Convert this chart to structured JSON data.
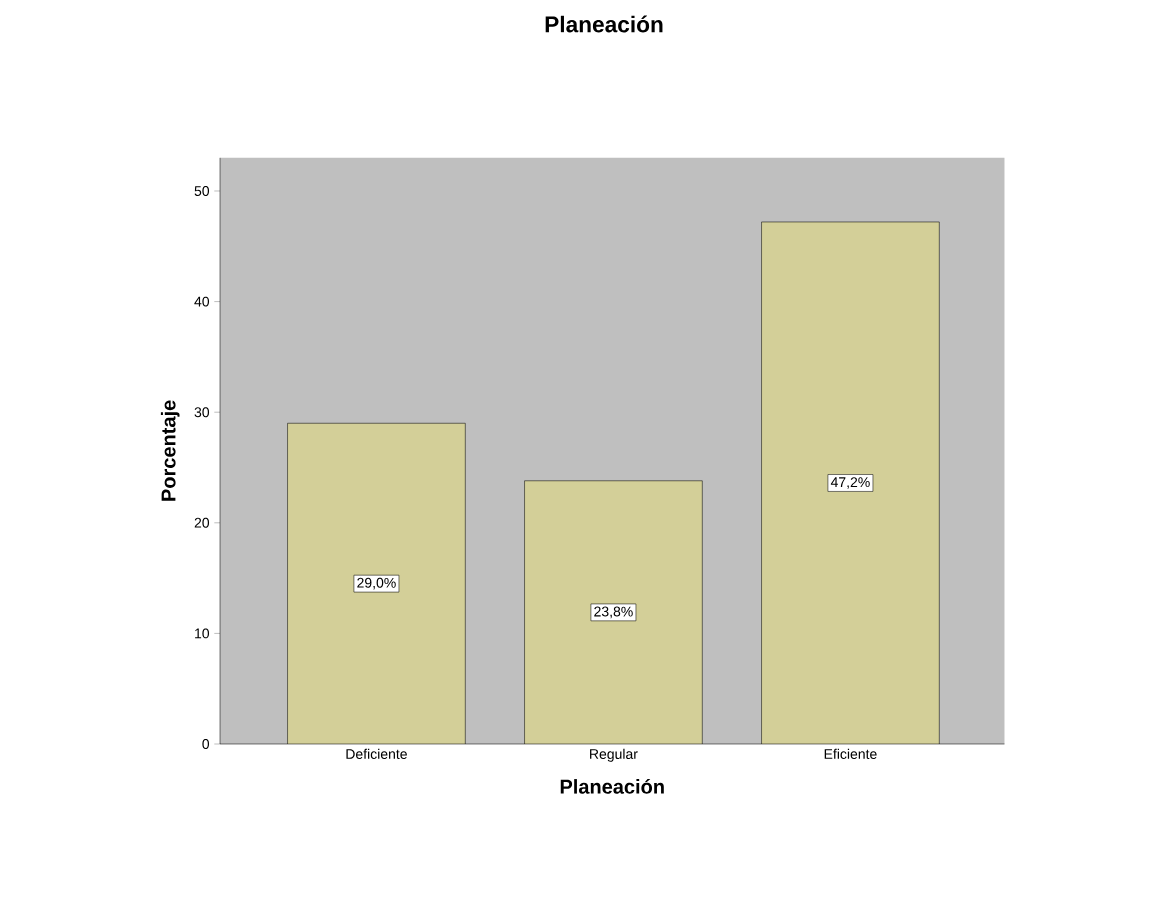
{
  "chart_data": {
    "type": "bar",
    "title": "Planeación",
    "xlabel": "Planeación",
    "ylabel": "Porcentaje",
    "categories": [
      "Deficiente",
      "Regular",
      "Eficiente"
    ],
    "values": [
      29.0,
      23.8,
      47.2
    ],
    "value_labels": [
      "29,0%",
      "23,8%",
      "47,2%"
    ],
    "color": "#d3cf98",
    "ylim": [
      0,
      53
    ],
    "yticks": [
      0,
      10,
      20,
      30,
      40,
      50
    ]
  }
}
